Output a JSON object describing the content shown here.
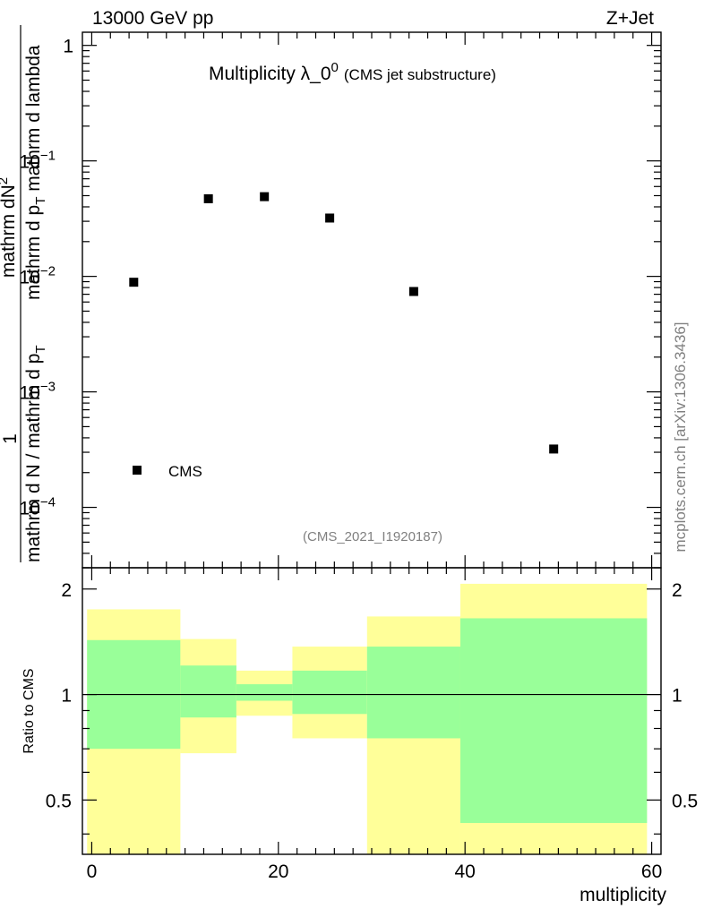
{
  "header": {
    "left": "13000 GeV pp",
    "right": "Z+Jet"
  },
  "side_label": "mcplots.cern.ch [arXiv:1306.3436]",
  "chart_data": [
    {
      "type": "scatter",
      "title_main": "Multiplicity λ_0",
      "title_sup": "0",
      "title_sub": "(CMS jet substructure)",
      "analysis_tag": "(CMS_2021_I1920187)",
      "ylabel_numerator": "mathrm dN",
      "ylabel_numerator_sup": "2",
      "ylabel_denominator": "mathrm d p",
      "ylabel_den_sub": "T",
      "ylabel_den_rest": " mathrm d lambda",
      "ylabel_prefix_top": "1",
      "ylabel_prefix_bottom": "mathrm d N / mathrm d p",
      "ylabel_prefix_sub": "T",
      "yscale": "log",
      "ylim": [
        3e-05,
        1.3
      ],
      "xlim": [
        -1,
        61
      ],
      "ytick_labels": [
        {
          "mant": "1",
          "exp": "",
          "value": 1
        },
        {
          "mant": "10",
          "exp": "−1",
          "value": 0.1
        },
        {
          "mant": "10",
          "exp": "−2",
          "value": 0.01
        },
        {
          "mant": "10",
          "exp": "−3",
          "value": 0.001
        },
        {
          "mant": "10",
          "exp": "−4",
          "value": 0.0001
        }
      ],
      "series": [
        {
          "name": "CMS",
          "marker": "square",
          "x": [
            4.5,
            12.5,
            18.5,
            25.5,
            34.5,
            49.5
          ],
          "y": [
            0.0089,
            0.047,
            0.049,
            0.032,
            0.0074,
            0.00032
          ]
        }
      ],
      "legend": {
        "label": "CMS",
        "placement": "bottom-left"
      }
    },
    {
      "type": "area",
      "ylabel": "Ratio to CMS",
      "xlabel": "multiplicity",
      "xlim": [
        -1,
        61
      ],
      "ylim": [
        0.35,
        2.3
      ],
      "yticks": [
        0.5,
        1,
        2
      ],
      "ytick_labels": [
        "0.5",
        "1",
        "2"
      ],
      "xticks": [
        0,
        20,
        40,
        60
      ],
      "xtick_labels": [
        "0",
        "20",
        "40",
        "60"
      ],
      "reference_line": 1,
      "bins": [
        {
          "xlo": -0.5,
          "xhi": 9.5,
          "inner": [
            0.7,
            1.43
          ],
          "outer": [
            0.0,
            1.75
          ]
        },
        {
          "xlo": 9.5,
          "xhi": 15.5,
          "inner": [
            0.86,
            1.21
          ],
          "outer": [
            0.68,
            1.44
          ]
        },
        {
          "xlo": 15.5,
          "xhi": 21.5,
          "inner": [
            0.96,
            1.07
          ],
          "outer": [
            0.87,
            1.17
          ]
        },
        {
          "xlo": 21.5,
          "xhi": 29.5,
          "inner": [
            0.88,
            1.17
          ],
          "outer": [
            0.75,
            1.37
          ]
        },
        {
          "xlo": 29.5,
          "xhi": 39.5,
          "inner": [
            0.75,
            1.37
          ],
          "outer": [
            0.0,
            1.67
          ]
        },
        {
          "xlo": 39.5,
          "xhi": 59.5,
          "inner": [
            0.43,
            1.65
          ],
          "outer": [
            0.0,
            2.07
          ]
        }
      ],
      "colors": {
        "inner": "#99ff99",
        "outer": "#ffff99"
      }
    }
  ]
}
